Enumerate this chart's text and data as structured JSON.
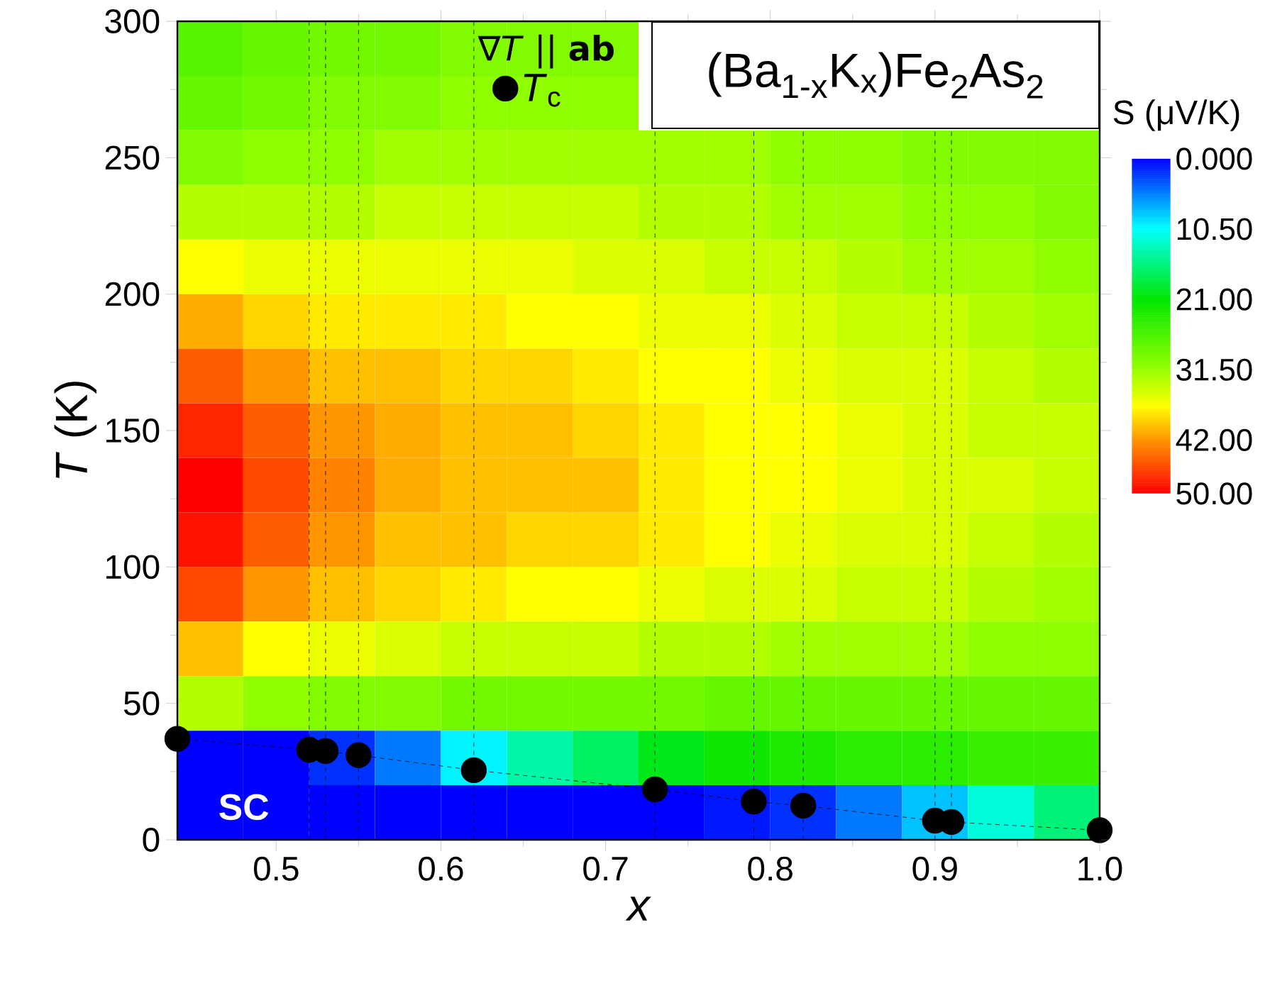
{
  "chart_data": [
    {
      "type": "heatmap",
      "clabel": "S (μV/K)",
      "tick_labels": false,
      "categories": [
        null,
        null,
        null,
        null,
        null,
        null,
        null,
        null,
        null,
        null,
        null,
        null,
        null,
        null
      ],
      "y_categories": [
        null,
        null,
        null,
        null,
        null,
        null,
        null,
        null,
        null,
        null,
        null,
        null,
        null,
        null,
        null
      ],
      "cells": [
        [
          27,
          28,
          29,
          29,
          30,
          30,
          30,
          null,
          null,
          null,
          null,
          null,
          null,
          null
        ],
        [
          28,
          29,
          30,
          30,
          31,
          31,
          31,
          null,
          null,
          null,
          null,
          null,
          null,
          null
        ],
        [
          30,
          31,
          31,
          32,
          32,
          32,
          32,
          32,
          32,
          31,
          31,
          30,
          30,
          30
        ],
        [
          33,
          33,
          33,
          34,
          34,
          34,
          34,
          33,
          33,
          32,
          32,
          31,
          31,
          30
        ],
        [
          37,
          36,
          36,
          36,
          36,
          36,
          35,
          35,
          34,
          34,
          33,
          32,
          32,
          31
        ],
        [
          41,
          39,
          38,
          38,
          38,
          37,
          37,
          36,
          36,
          35,
          34,
          34,
          33,
          32
        ],
        [
          45,
          42,
          40,
          40,
          39,
          39,
          38,
          37,
          37,
          36,
          35,
          35,
          34,
          33
        ],
        [
          48,
          45,
          42,
          41,
          40,
          40,
          39,
          38,
          37,
          37,
          36,
          35,
          34,
          34
        ],
        [
          50,
          46,
          43,
          41,
          40,
          40,
          40,
          38,
          37,
          37,
          36,
          35,
          35,
          34
        ],
        [
          49,
          45,
          42,
          40,
          40,
          39,
          39,
          38,
          37,
          36,
          35,
          35,
          34,
          33
        ],
        [
          46,
          42,
          40,
          39,
          38,
          37,
          37,
          36,
          35,
          35,
          34,
          34,
          33,
          32
        ],
        [
          40,
          37,
          36,
          35,
          34,
          34,
          34,
          33,
          33,
          32,
          32,
          32,
          31,
          31
        ],
        [
          33,
          31,
          30,
          30,
          29,
          29,
          29,
          29,
          28,
          28,
          28,
          28,
          28,
          28
        ],
        [
          0,
          0,
          2,
          5,
          10,
          14,
          17,
          20,
          22,
          23,
          24,
          24,
          25,
          25
        ],
        [
          0,
          0,
          0,
          0,
          0,
          0,
          0,
          0,
          1,
          2,
          5,
          8,
          12,
          16
        ]
      ],
      "clim": [
        0,
        50
      ],
      "cticks": [
        {
          "value": 0,
          "label": "0.000"
        },
        {
          "value": 10.5,
          "label": "10.50"
        },
        {
          "value": 21,
          "label": "21.00"
        },
        {
          "value": 31.5,
          "label": "31.50"
        },
        {
          "value": 42,
          "label": "42.00"
        },
        {
          "value": 50,
          "label": "50.00"
        }
      ]
    },
    {
      "type": "line",
      "title": "(Ba$_{1-x}$K$_{x}$)Fe$_{2}$As$_{2}$",
      "xlabel": "x",
      "ylabel": "*T* (K)",
      "legend_title": "∇*T* || **ab**",
      "annotations": [
        "SC"
      ],
      "series": [
        {
          "name": "*T*$_{c}$",
          "color": "#000000",
          "marker": "circle",
          "line_style": "dashed",
          "x": [
            0.44,
            0.52,
            0.53,
            0.55,
            0.62,
            0.73,
            0.79,
            0.82,
            0.9,
            0.91,
            1.0
          ],
          "values": [
            37,
            33,
            32.5,
            31,
            25.5,
            18.5,
            14,
            12.5,
            7,
            6.5,
            3.5
          ]
        }
      ],
      "ref_lines": [
        {
          "axis": "x",
          "value": 0.52,
          "color": "#000000",
          "line_style": "dashed"
        },
        {
          "axis": "x",
          "value": 0.53,
          "color": "#000000",
          "line_style": "dashed"
        },
        {
          "axis": "x",
          "value": 0.55,
          "color": "#000000",
          "line_style": "dashed"
        },
        {
          "axis": "x",
          "value": 0.62,
          "color": "#000000",
          "line_style": "dashed"
        },
        {
          "axis": "x",
          "value": 0.73,
          "color": "#000000",
          "line_style": "dashed"
        },
        {
          "axis": "x",
          "value": 0.79,
          "color": "#000000",
          "line_style": "dashed"
        },
        {
          "axis": "x",
          "value": 0.82,
          "color": "#000000",
          "line_style": "dashed"
        },
        {
          "axis": "x",
          "value": 0.9,
          "color": "#000000",
          "line_style": "dashed"
        },
        {
          "axis": "x",
          "value": 0.91,
          "color": "#000000",
          "line_style": "dashed"
        }
      ],
      "legend": "top",
      "xlim": [
        0.44,
        1.0
      ],
      "xticks": [
        0.5,
        0.6,
        0.7,
        0.8,
        0.9,
        {
          "value": 1.0,
          "label": "1.0"
        }
      ],
      "ylim": [
        0,
        300
      ],
      "yticks": [
        0,
        50,
        100,
        150,
        200,
        250,
        300
      ]
    }
  ]
}
